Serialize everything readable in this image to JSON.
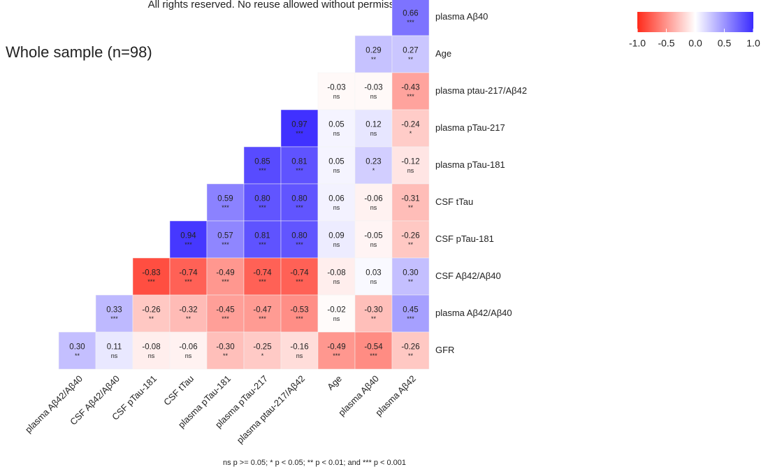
{
  "chart_data": {
    "type": "heatmap",
    "title": "Whole sample (n=98)",
    "watermark": "All rights reserved. No reuse allowed without permission.",
    "note": "ns p >= 0.05; * p < 0.05; ** p < 0.01; and *** p < 0.001",
    "columns": [
      "plasma Aβ42/Aβ40",
      "CSF Aβ42/Aβ40",
      "CSF pTau-181",
      "CSF tTau",
      "plasma pTau-181",
      "plasma pTau-217",
      "plasma ptau-217/Aβ42",
      "Age",
      "plasma Aβ40",
      "plasma Aβ42"
    ],
    "rows": [
      "plasma Aβ40",
      "Age",
      "plasma ptau-217/Aβ42",
      "plasma pTau-217",
      "plasma pTau-181",
      "CSF tTau",
      "CSF pTau-181",
      "CSF Aβ42/Aβ40",
      "plasma Aβ42/Aβ40",
      "GFR"
    ],
    "values": [
      [
        null,
        null,
        null,
        null,
        null,
        null,
        null,
        null,
        null,
        0.66
      ],
      [
        null,
        null,
        null,
        null,
        null,
        null,
        null,
        null,
        0.29,
        0.27
      ],
      [
        null,
        null,
        null,
        null,
        null,
        null,
        null,
        -0.03,
        -0.03,
        -0.43
      ],
      [
        null,
        null,
        null,
        null,
        null,
        null,
        0.97,
        0.05,
        0.12,
        -0.24
      ],
      [
        null,
        null,
        null,
        null,
        null,
        0.85,
        0.81,
        0.05,
        0.23,
        -0.12
      ],
      [
        null,
        null,
        null,
        null,
        0.59,
        0.8,
        0.8,
        0.06,
        -0.06,
        -0.31
      ],
      [
        null,
        null,
        null,
        0.94,
        0.57,
        0.81,
        0.8,
        0.09,
        -0.05,
        -0.26
      ],
      [
        null,
        null,
        -0.83,
        -0.74,
        -0.49,
        -0.74,
        -0.74,
        -0.08,
        0.03,
        0.3
      ],
      [
        null,
        0.33,
        -0.26,
        -0.32,
        -0.45,
        -0.47,
        -0.53,
        -0.02,
        -0.3,
        0.45
      ],
      [
        0.3,
        0.11,
        -0.08,
        -0.06,
        -0.3,
        -0.25,
        -0.16,
        -0.49,
        -0.54,
        -0.26
      ]
    ],
    "value_labels": [
      [
        null,
        null,
        null,
        null,
        null,
        null,
        null,
        null,
        null,
        "0.66"
      ],
      [
        null,
        null,
        null,
        null,
        null,
        null,
        null,
        null,
        "0.29",
        "0.27"
      ],
      [
        null,
        null,
        null,
        null,
        null,
        null,
        null,
        "-0.03",
        "-0.03",
        "-0.43"
      ],
      [
        null,
        null,
        null,
        null,
        null,
        null,
        "0.97",
        "0.05",
        "0.12",
        "-0.24"
      ],
      [
        null,
        null,
        null,
        null,
        null,
        "0.85",
        "0.81",
        "0.05",
        "0.23",
        "-0.12"
      ],
      [
        null,
        null,
        null,
        null,
        "0.59",
        "0.80",
        "0.80",
        "0.06",
        "-0.06",
        "-0.31"
      ],
      [
        null,
        null,
        null,
        "0.94",
        "0.57",
        "0.81",
        "0.80",
        "0.09",
        "-0.05",
        "-0.26"
      ],
      [
        null,
        null,
        "-0.83",
        "-0.74",
        "-0.49",
        "-0.74",
        "-0.74",
        "-0.08",
        "0.03",
        "0.30"
      ],
      [
        null,
        "0.33",
        "-0.26",
        "-0.32",
        "-0.45",
        "-0.47",
        "-0.53",
        "-0.02",
        "-0.30",
        "0.45"
      ],
      [
        "0.30",
        "0.11",
        "-0.08",
        "-0.06",
        "-0.30",
        "-0.25",
        "-0.16",
        "-0.49",
        "-0.54",
        "-0.26"
      ]
    ],
    "significance": [
      [
        null,
        null,
        null,
        null,
        null,
        null,
        null,
        null,
        null,
        "***"
      ],
      [
        null,
        null,
        null,
        null,
        null,
        null,
        null,
        null,
        "**",
        "**"
      ],
      [
        null,
        null,
        null,
        null,
        null,
        null,
        null,
        "ns",
        "ns",
        "***"
      ],
      [
        null,
        null,
        null,
        null,
        null,
        null,
        "***",
        "ns",
        "ns",
        "*"
      ],
      [
        null,
        null,
        null,
        null,
        null,
        "***",
        "***",
        "ns",
        "*",
        "ns"
      ],
      [
        null,
        null,
        null,
        null,
        "***",
        "***",
        "***",
        "ns",
        "ns",
        "**"
      ],
      [
        null,
        null,
        null,
        "***",
        "***",
        "***",
        "***",
        "ns",
        "ns",
        "**"
      ],
      [
        null,
        null,
        "***",
        "***",
        "***",
        "***",
        "***",
        "ns",
        "ns",
        "**"
      ],
      [
        null,
        "***",
        "**",
        "**",
        "***",
        "***",
        "***",
        "ns",
        "**",
        "***"
      ],
      [
        "**",
        "ns",
        "ns",
        "ns",
        "**",
        "*",
        "ns",
        "***",
        "***",
        "**"
      ]
    ],
    "colors": [
      "#FF2A1A",
      "#FFFFFF",
      "#3A2BFF"
    ],
    "clim": [
      -1,
      1
    ],
    "cticks": [
      {
        "value": -1,
        "label": "-1.0"
      },
      -0.5,
      {
        "value": 0,
        "label": "0.0"
      },
      0.5,
      {
        "value": 1,
        "label": "1.0"
      }
    ]
  }
}
